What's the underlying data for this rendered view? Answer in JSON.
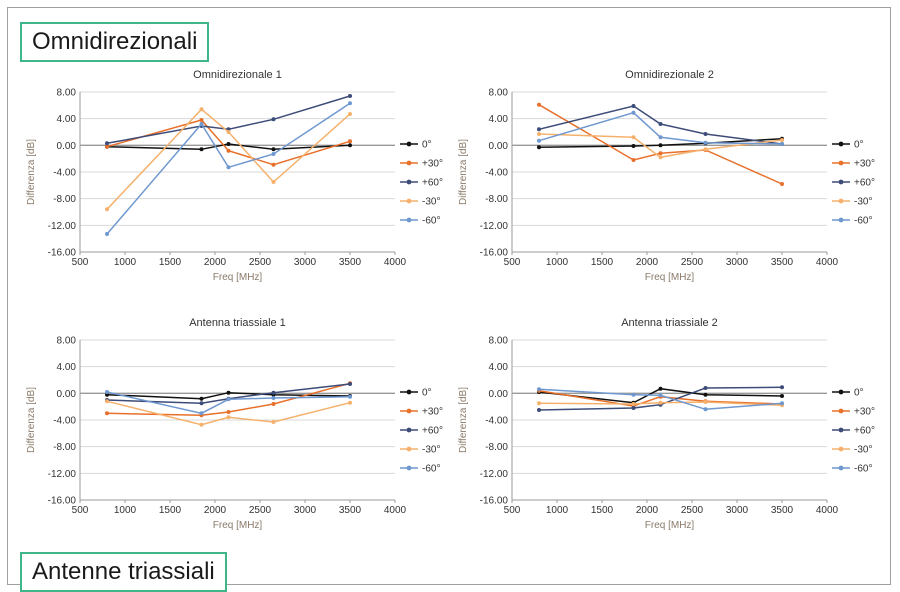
{
  "sections": {
    "omni_title": "Omnidirezionali",
    "tri_title": "Antenne triassiali"
  },
  "colors": {
    "0": "#111111",
    "+30": "#e8702a",
    "+60": "#3d4c78",
    "-30": "#f5b16c",
    "-60": "#6f98d0"
  },
  "chart_data": [
    {
      "type": "line",
      "title": "Omnidirezionale 1",
      "xlabel": "Freq [MHz]",
      "ylabel": "Differenza [dB]",
      "xlim": [
        500,
        4000
      ],
      "ylim": [
        -16,
        8
      ],
      "xticks": [
        "500",
        "1000",
        "1500",
        "2000",
        "2500",
        "3000",
        "3500",
        "4000"
      ],
      "yticks": [
        "8.00",
        "4.00",
        "0.00",
        "-4.00",
        "-8.00",
        "-12.00",
        "-16.00"
      ],
      "legend": "right",
      "series": [
        {
          "name": "0°",
          "key": "0",
          "x": [
            800,
            1850,
            2150,
            2650,
            3500
          ],
          "y": [
            -0.2,
            -0.6,
            0.2,
            -0.6,
            0.0
          ]
        },
        {
          "name": "+30°",
          "key": "+30",
          "x": [
            800,
            1850,
            2150,
            2650,
            3500
          ],
          "y": [
            -0.2,
            3.8,
            -0.8,
            -2.9,
            0.6
          ]
        },
        {
          "name": "+60°",
          "key": "+60",
          "x": [
            800,
            1850,
            2150,
            2650,
            3500
          ],
          "y": [
            0.3,
            2.9,
            2.4,
            3.9,
            7.4
          ]
        },
        {
          "name": "-30°",
          "key": "-30",
          "x": [
            800,
            1850,
            2150,
            2650,
            3500
          ],
          "y": [
            -9.6,
            5.4,
            2.0,
            -5.5,
            4.7
          ]
        },
        {
          "name": "-60°",
          "key": "-60",
          "x": [
            800,
            1850,
            2150,
            2650,
            3500
          ],
          "y": [
            -13.3,
            3.2,
            -3.3,
            -1.3,
            6.3
          ]
        }
      ]
    },
    {
      "type": "line",
      "title": "Omnidirezionale 2",
      "xlabel": "Freq [MHz]",
      "ylabel": "Differenza [dB]",
      "xlim": [
        500,
        4000
      ],
      "ylim": [
        -16,
        8
      ],
      "xticks": [
        "500",
        "1000",
        "1500",
        "2000",
        "2500",
        "3000",
        "3500",
        "4000"
      ],
      "yticks": [
        "8.00",
        "4.00",
        "0.00",
        "-4.00",
        "-8.00",
        "-12.00",
        "-16.00"
      ],
      "legend": "right",
      "series": [
        {
          "name": "0°",
          "key": "0",
          "x": [
            800,
            1850,
            2150,
            2650,
            3500
          ],
          "y": [
            -0.3,
            -0.1,
            0.0,
            0.3,
            1.0
          ]
        },
        {
          "name": "+30°",
          "key": "+30",
          "x": [
            800,
            1850,
            2150,
            2650,
            3500
          ],
          "y": [
            6.1,
            -2.2,
            -1.2,
            -0.7,
            -5.8
          ]
        },
        {
          "name": "+60°",
          "key": "+60",
          "x": [
            800,
            1850,
            2150,
            2650,
            3500
          ],
          "y": [
            2.4,
            5.9,
            3.2,
            1.7,
            0.2
          ]
        },
        {
          "name": "-30°",
          "key": "-30",
          "x": [
            800,
            1850,
            2150,
            2650,
            3500
          ],
          "y": [
            1.7,
            1.2,
            -1.8,
            -0.6,
            0.8
          ]
        },
        {
          "name": "-60°",
          "key": "-60",
          "x": [
            800,
            1850,
            2150,
            2650,
            3500
          ],
          "y": [
            0.7,
            4.9,
            1.2,
            0.4,
            0.2
          ]
        }
      ]
    },
    {
      "type": "line",
      "title": "Antenna triassiale 1",
      "xlabel": "Freq [MHz]",
      "ylabel": "Differenza [dB]",
      "xlim": [
        500,
        4000
      ],
      "ylim": [
        -16,
        8
      ],
      "xticks": [
        "500",
        "1000",
        "1500",
        "2000",
        "2500",
        "3000",
        "3500",
        "4000"
      ],
      "yticks": [
        "8.00",
        "4.00",
        "0.00",
        "-4.00",
        "-8.00",
        "-12.00",
        "-16.00"
      ],
      "legend": "right",
      "series": [
        {
          "name": "0°",
          "key": "0",
          "x": [
            800,
            1850,
            2150,
            2650,
            3500
          ],
          "y": [
            -0.2,
            -0.8,
            0.1,
            -0.2,
            -0.4
          ]
        },
        {
          "name": "+30°",
          "key": "+30",
          "x": [
            800,
            1850,
            2150,
            2650,
            3500
          ],
          "y": [
            -3.0,
            -3.3,
            -2.8,
            -1.6,
            1.5
          ]
        },
        {
          "name": "+60°",
          "key": "+60",
          "x": [
            800,
            1850,
            2150,
            2650,
            3500
          ],
          "y": [
            -1.0,
            -1.5,
            -0.8,
            0.1,
            1.4
          ]
        },
        {
          "name": "-30°",
          "key": "-30",
          "x": [
            800,
            1850,
            2150,
            2650,
            3500
          ],
          "y": [
            -1.2,
            -4.7,
            -3.6,
            -4.3,
            -1.4
          ]
        },
        {
          "name": "-60°",
          "key": "-60",
          "x": [
            800,
            1850,
            2150,
            2650,
            3500
          ],
          "y": [
            0.2,
            -3.0,
            -0.9,
            -0.7,
            -0.5
          ]
        }
      ]
    },
    {
      "type": "line",
      "title": "Antenna triassiale 2",
      "xlabel": "Freq [MHz]",
      "ylabel": "Differenza [dB]",
      "xlim": [
        500,
        4000
      ],
      "ylim": [
        -16,
        8
      ],
      "xticks": [
        "500",
        "1000",
        "1500",
        "2000",
        "2500",
        "3000",
        "3500",
        "4000"
      ],
      "yticks": [
        "8.00",
        "4.00",
        "0.00",
        "-4.00",
        "-8.00",
        "-12.00",
        "-16.00"
      ],
      "legend": "right",
      "series": [
        {
          "name": "0°",
          "key": "0",
          "x": [
            800,
            1850,
            2150,
            2650,
            3500
          ],
          "y": [
            0.2,
            -1.4,
            0.7,
            -0.2,
            -0.4
          ]
        },
        {
          "name": "+30°",
          "key": "+30",
          "x": [
            800,
            1850,
            2150,
            2650,
            3500
          ],
          "y": [
            0.4,
            -1.9,
            -0.5,
            -1.2,
            -1.6
          ]
        },
        {
          "name": "+60°",
          "key": "+60",
          "x": [
            800,
            1850,
            2150,
            2650,
            3500
          ],
          "y": [
            -2.5,
            -2.2,
            -1.7,
            0.8,
            0.9
          ]
        },
        {
          "name": "-30°",
          "key": "-30",
          "x": [
            800,
            1850,
            2150,
            2650,
            3500
          ],
          "y": [
            -1.5,
            -1.6,
            -1.4,
            -1.3,
            -1.8
          ]
        },
        {
          "name": "-60°",
          "key": "-60",
          "x": [
            800,
            1850,
            2150,
            2650,
            3500
          ],
          "y": [
            0.6,
            -0.2,
            -0.3,
            -2.4,
            -1.5
          ]
        }
      ]
    }
  ]
}
